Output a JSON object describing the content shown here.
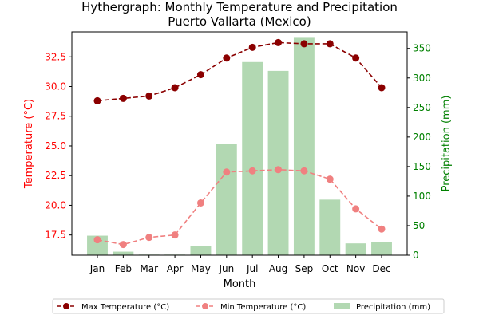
{
  "chart_data": {
    "type": "bar+line",
    "title": "Hythergraph: Monthly Temperature and Precipitation",
    "subtitle": "Puerto Vallarta (Mexico)",
    "xlabel": "Month",
    "ylabel_left": "Temperature (°C)",
    "ylabel_right": "Precipitation (mm)",
    "categories": [
      "Jan",
      "Feb",
      "Mar",
      "Apr",
      "May",
      "Jun",
      "Jul",
      "Aug",
      "Sep",
      "Oct",
      "Nov",
      "Dec"
    ],
    "ylim_left": [
      15.8,
      34.6
    ],
    "ylim_right": [
      0,
      378
    ],
    "yticks_left": [
      17.5,
      20.0,
      22.5,
      25.0,
      27.5,
      30.0,
      32.5
    ],
    "yticks_left_labels": [
      "17.5",
      "20.0",
      "22.5",
      "25.0",
      "27.5",
      "30.0",
      "32.5"
    ],
    "yticks_right": [
      0,
      50,
      100,
      150,
      200,
      250,
      300,
      350
    ],
    "yticks_right_labels": [
      "0",
      "50",
      "100",
      "150",
      "200",
      "250",
      "300",
      "350"
    ],
    "series": [
      {
        "name": "Max Temperature (°C)",
        "kind": "line",
        "axis": "left",
        "color": "#8b0000",
        "style": "dashed",
        "values": [
          28.8,
          29.0,
          29.2,
          29.9,
          31.0,
          32.4,
          33.3,
          33.7,
          33.6,
          33.6,
          32.4,
          29.9
        ]
      },
      {
        "name": "Min Temperature (°C)",
        "kind": "line",
        "axis": "left",
        "color": "#f08080",
        "style": "dashed",
        "values": [
          17.1,
          16.7,
          17.3,
          17.5,
          20.2,
          22.8,
          22.9,
          23.0,
          22.9,
          22.2,
          19.7,
          18.0
        ]
      },
      {
        "name": "Precipitation (mm)",
        "kind": "bar",
        "axis": "right",
        "color": "#b2d8b2",
        "values": [
          33,
          6,
          1,
          1,
          15,
          188,
          327,
          312,
          368,
          94,
          20,
          22
        ]
      }
    ],
    "legend_position": "bottom",
    "grid": false
  }
}
